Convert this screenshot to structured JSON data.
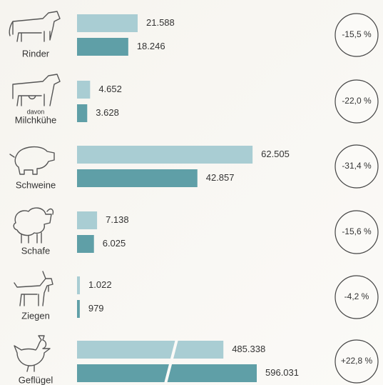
{
  "chart_data": {
    "type": "bar",
    "categories": [
      "Rinder",
      "Milchkühe",
      "Schweine",
      "Schafe",
      "Ziegen",
      "Geflügel"
    ],
    "category_prefixes": [
      null,
      "davon",
      null,
      null,
      null,
      null
    ],
    "series": [
      {
        "color": "#a9cdd3",
        "values": [
          21588,
          4652,
          62505,
          7138,
          1022,
          485338
        ],
        "value_labels": [
          "21.588",
          "4.652",
          "62.505",
          "7.138",
          "1.022",
          "485.338"
        ]
      },
      {
        "color": "#5f9fa7",
        "values": [
          18246,
          3628,
          42857,
          6025,
          979,
          596031
        ],
        "value_labels": [
          "18.246",
          "3.628",
          "42.857",
          "6.025",
          "979",
          "596.031"
        ]
      }
    ],
    "changes": [
      {
        "value": -15.5,
        "label": "-15,5 %"
      },
      {
        "value": -22.0,
        "label": "-22,0 %"
      },
      {
        "value": -31.4,
        "label": "-31,4 %"
      },
      {
        "value": -15.6,
        "label": "-15,6 %"
      },
      {
        "value": -4.2,
        "label": "-4,2 %"
      },
      {
        "value": 22.8,
        "label": "+22,8 %"
      }
    ],
    "xlim": [
      0,
      64000
    ]
  }
}
